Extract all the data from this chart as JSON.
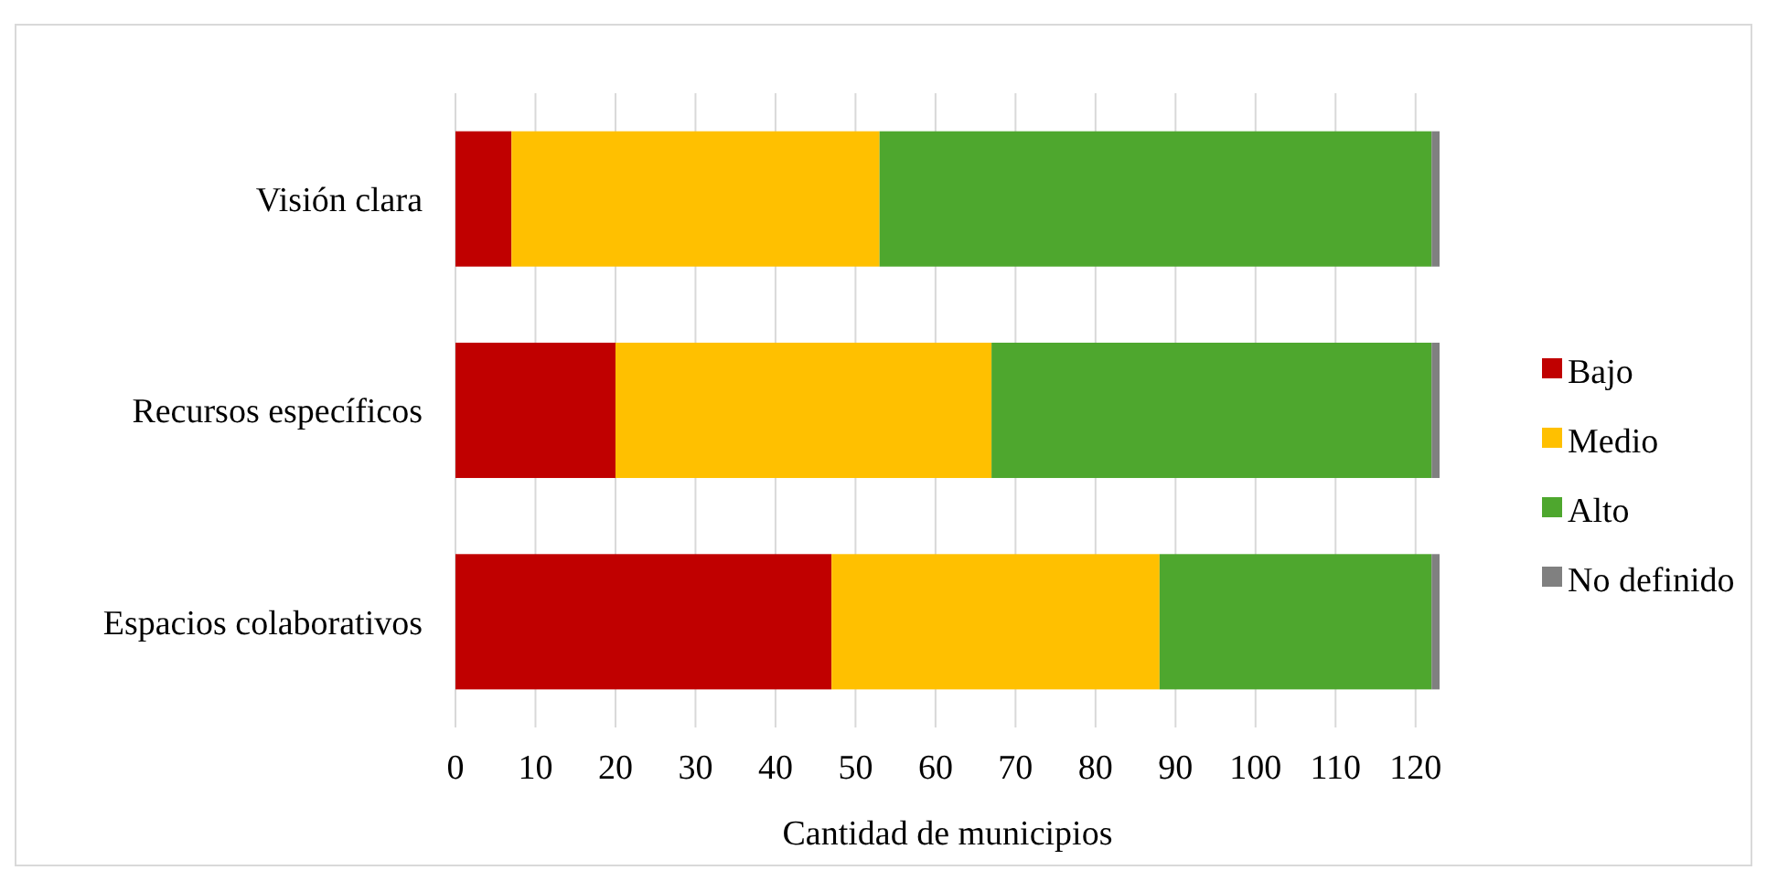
{
  "chart_data": {
    "type": "bar",
    "orientation": "horizontal",
    "stacked": true,
    "xlabel": "Cantidad de municipios",
    "categories": [
      "Visión clara",
      "Recursos específicos",
      "Espacios colaborativos"
    ],
    "series": [
      {
        "name": "Bajo",
        "color": "#c00000",
        "values": [
          7,
          20,
          47
        ]
      },
      {
        "name": "Medio",
        "color": "#ffc000",
        "values": [
          46,
          47,
          41
        ]
      },
      {
        "name": "Alto",
        "color": "#4ea72e",
        "values": [
          69,
          55,
          34
        ]
      },
      {
        "name": "No definido",
        "color": "#808080",
        "values": [
          1,
          1,
          1
        ]
      }
    ],
    "xlim": [
      0,
      123
    ],
    "xticks": [
      0,
      10,
      20,
      30,
      40,
      50,
      60,
      70,
      80,
      90,
      100,
      110,
      120
    ],
    "grid": "x",
    "legend": "right"
  }
}
